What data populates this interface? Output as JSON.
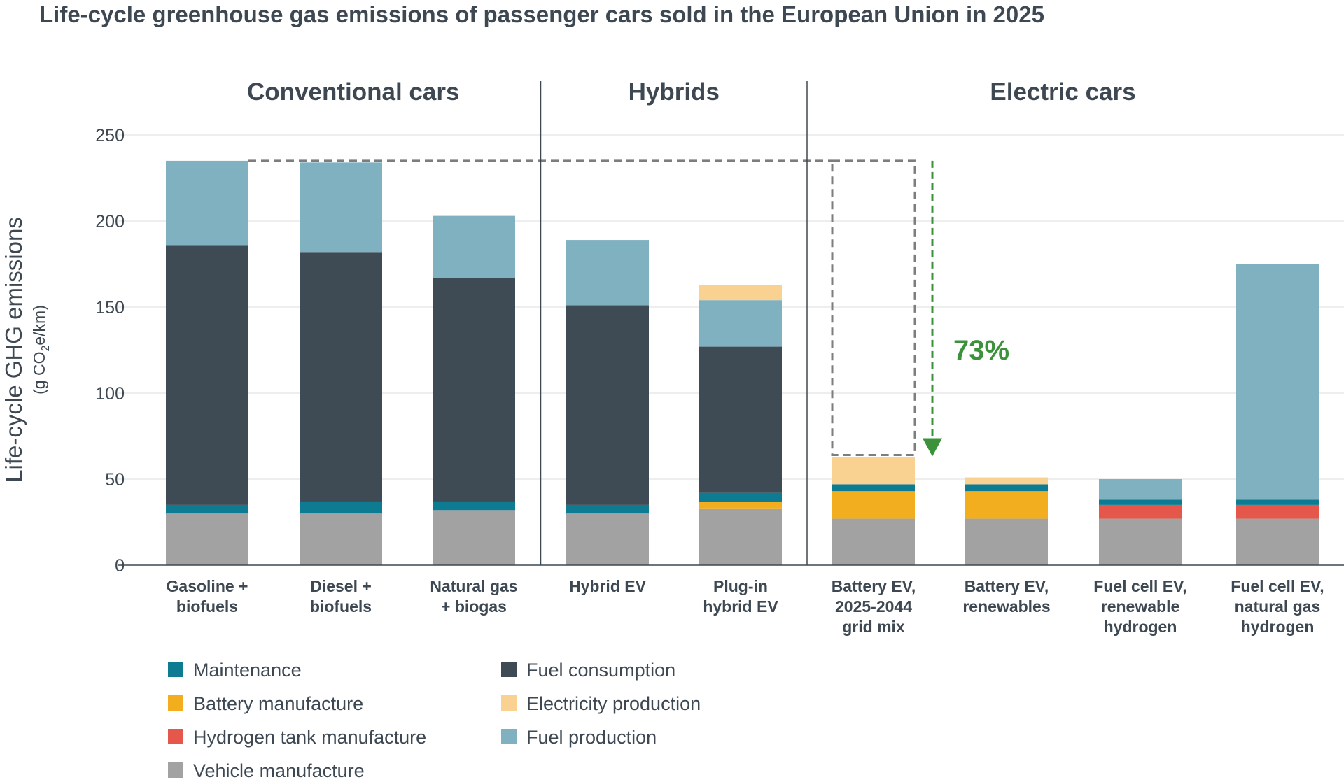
{
  "chart_data": {
    "type": "bar",
    "stacked": true,
    "title": "Life-cycle greenhouse gas emissions of passenger cars sold in the European Union in 2025",
    "ylabel": "Life-cycle GHG emissions",
    "ylabel_units": {
      "pre": "(g CO",
      "sub": "2",
      "post": "e/km)"
    },
    "ylim": [
      0,
      250
    ],
    "yticks": [
      0,
      50,
      100,
      150,
      200,
      250
    ],
    "grid": true,
    "legend_position": "bottom-left",
    "groups": [
      {
        "label": "Conventional cars",
        "start": 0,
        "end": 2
      },
      {
        "label": "Hybrids",
        "start": 3,
        "end": 4
      },
      {
        "label": "Electric cars",
        "start": 5,
        "end": 8
      }
    ],
    "categories": [
      [
        "Gasoline +",
        "biofuels"
      ],
      [
        "Diesel +",
        "biofuels"
      ],
      [
        "Natural gas",
        "+ biogas"
      ],
      [
        "Hybrid EV"
      ],
      [
        "Plug-in",
        "hybrid EV"
      ],
      [
        "Battery EV,",
        "2025-2044",
        "grid mix"
      ],
      [
        "Battery EV,",
        "renewables"
      ],
      [
        "Fuel cell EV,",
        "renewable",
        "hydrogen"
      ],
      [
        "Fuel cell EV,",
        "natural gas",
        "hydrogen"
      ]
    ],
    "series": [
      {
        "name": "Vehicle manufacture",
        "color": "#a2a2a2",
        "values": [
          30,
          30,
          32,
          30,
          33,
          27,
          27,
          27,
          27
        ]
      },
      {
        "name": "Hydrogen tank manufacture",
        "color": "#e5574a",
        "values": [
          0,
          0,
          0,
          0,
          0,
          0,
          0,
          8,
          8
        ]
      },
      {
        "name": "Battery manufacture",
        "color": "#f2ae1e",
        "values": [
          0,
          0,
          0,
          0,
          4,
          16,
          16,
          0,
          0
        ]
      },
      {
        "name": "Maintenance",
        "color": "#0d7b91",
        "values": [
          5,
          7,
          5,
          5,
          5,
          4,
          4,
          3,
          3
        ]
      },
      {
        "name": "Fuel consumption",
        "color": "#3e4a54",
        "values": [
          151,
          145,
          130,
          116,
          85,
          0,
          0,
          0,
          0
        ]
      },
      {
        "name": "Fuel production",
        "color": "#80b1c1",
        "values": [
          49,
          52,
          36,
          38,
          27,
          0,
          0,
          12,
          137
        ]
      },
      {
        "name": "Electricity production",
        "color": "#f9d292",
        "values": [
          0,
          0,
          0,
          0,
          9,
          16,
          4,
          0,
          0
        ]
      }
    ],
    "legend_order": [
      "Maintenance",
      "Battery manufacture",
      "Hydrogen tank manufacture",
      "Vehicle manufacture",
      "Fuel consumption",
      "Electricity production",
      "Fuel production"
    ],
    "annotation": {
      "text": "73%",
      "color": "#3c913b",
      "from_value": 235,
      "to_value": 64,
      "category_index": 5
    }
  }
}
